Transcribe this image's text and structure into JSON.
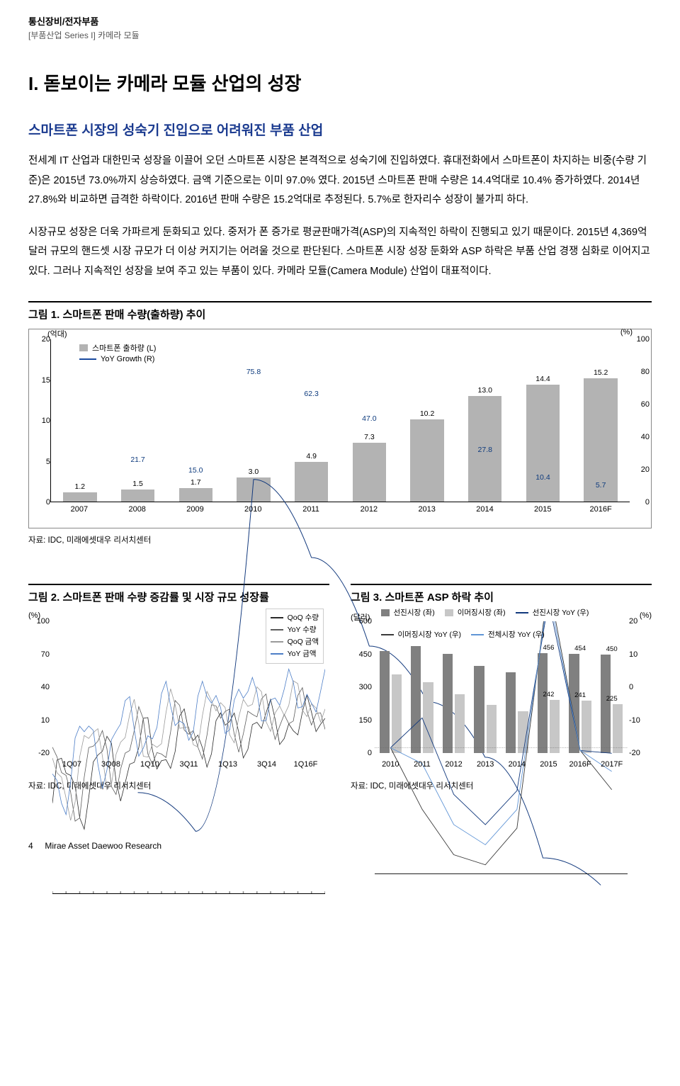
{
  "header": {
    "cat": "통신장비/전자부품",
    "sub": "[부품산업 Series I] 카메라 모듈"
  },
  "sectionTitle": "I. 돋보이는 카메라 모듈 산업의  성장",
  "subTitle": "스마트폰 시장의 성숙기 진입으로 어려워진 부품 산업",
  "para1": "전세계 IT 산업과 대한민국 성장을 이끌어 오던 스마트폰 시장은 본격적으로 성숙기에 진입하였다. 휴대전화에서 스마트폰이 차지하는 비중(수량 기준)은 2015년 73.0%까지 상승하였다. 금액 기준으로는 이미 97.0% 였다. 2015년 스마트폰 판매 수량은 14.4억대로 10.4% 증가하였다. 2014년 27.8%와 비교하면 급격한 하락이다. 2016년 판매 수량은 15.2억대로 추정된다. 5.7%로 한자리수 성장이 불가피 하다.",
  "para2": "시장규모 성장은 더욱 가파르게 둔화되고 있다. 중저가 폰 증가로 평균판매가격(ASP)의 지속적인 하락이 진행되고 있기 때문이다. 2015년 4,369억 달러 규모의 핸드셋 시장 규모가 더 이상 커지기는 어려울 것으로 판단된다. 스마트폰 시장 성장 둔화와 ASP 하락은 부품 산업 경쟁 심화로 이어지고 있다. 그러나 지속적인 성장을 보여 주고 있는 부품이 있다. 카메라 모듈(Camera Module) 산업이 대표적이다.",
  "fig1": {
    "title": "그림 1. 스마트폰 판매 수량(출하량) 추이",
    "unitL": "(억대)",
    "unitR": "(%)",
    "yL": {
      "ticks": [
        0,
        5,
        10,
        15,
        20
      ],
      "max": 20
    },
    "yR": {
      "ticks": [
        0,
        20,
        40,
        60,
        80,
        100
      ],
      "max": 100
    },
    "x": [
      "2007",
      "2008",
      "2009",
      "2010",
      "2011",
      "2012",
      "2013",
      "2014",
      "2015",
      "2016F"
    ],
    "bars": [
      1.2,
      1.5,
      1.7,
      3.0,
      4.9,
      7.3,
      10.2,
      13.0,
      14.4,
      15.2
    ],
    "line": [
      null,
      21.7,
      15.0,
      75.8,
      62.3,
      47.0,
      null,
      27.8,
      10.4,
      5.7
    ],
    "barColor": "#b3b3b3",
    "lineColor": "#12397d",
    "legend": {
      "bar": "스마트폰 출하량 (L)",
      "line": "YoY Growth (R)"
    },
    "source": "자료: IDC, 미래에셋대우 리서치센터"
  },
  "fig2": {
    "title": "그림 2. 스마트폰 판매 수량 증감률 및 시장 규모 성장률",
    "unitL": "(%)",
    "yL": [
      -20,
      10,
      40,
      70,
      100
    ],
    "x": [
      "1Q07",
      "3Q08",
      "1Q10",
      "3Q11",
      "1Q13",
      "3Q14",
      "1Q16F"
    ],
    "legend": [
      "QoQ 수량",
      "YoY 수량",
      "QoQ 금액",
      "YoY 금액"
    ],
    "colors": [
      "#2a2a2a",
      "#5c5c5c",
      "#9a9a9a",
      "#4d7ec7"
    ],
    "source": "자료: IDC, 미래에셋대우 리서치센터"
  },
  "fig3": {
    "title": "그림 3. 스마트폰 ASP 하락 추이",
    "unitL": "(달러)",
    "unitR": "(%)",
    "yL": [
      0,
      150,
      300,
      450,
      600
    ],
    "yR": [
      -20,
      -10,
      0,
      10,
      20
    ],
    "x": [
      "2010",
      "2011",
      "2012",
      "2013",
      "2014",
      "2015",
      "2016F",
      "2017F"
    ],
    "barsA": [
      466,
      488,
      452,
      397,
      370,
      456,
      454,
      450
    ],
    "barsB": [
      360,
      325,
      270,
      220,
      192,
      242,
      241,
      225
    ],
    "labelsShow": {
      "456": [
        5,
        "A"
      ],
      "454": [
        6,
        "A"
      ],
      "450": [
        7,
        "A"
      ],
      "242": [
        5,
        "B"
      ],
      "241": [
        6,
        "B"
      ],
      "225": [
        7,
        "B"
      ]
    },
    "legend": {
      "barA": "선진시장 (좌)",
      "barB": "이머징시장 (좌)",
      "l1": "선진시장 YoY (우)",
      "l2": "이머징시장 YoY (우)",
      "l3": "전체시장 YoY (우)"
    },
    "source": "자료: IDC, 미래에셋대우 리서치센터"
  },
  "footer": {
    "page": "4",
    "brand": "Mirae Asset Daewoo Research"
  }
}
